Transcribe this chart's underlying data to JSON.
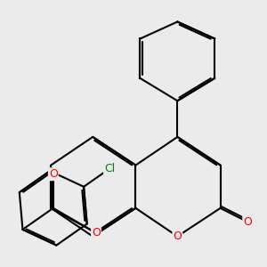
{
  "bg_color": "#ebebeb",
  "bond_color": "#000000",
  "bond_width": 1.5,
  "atom_colors": {
    "O": "#ff0000",
    "Cl": "#008000",
    "C": "#000000"
  },
  "font_size_atom": 9,
  "fig_size": [
    3.0,
    3.0
  ],
  "dpi": 100
}
